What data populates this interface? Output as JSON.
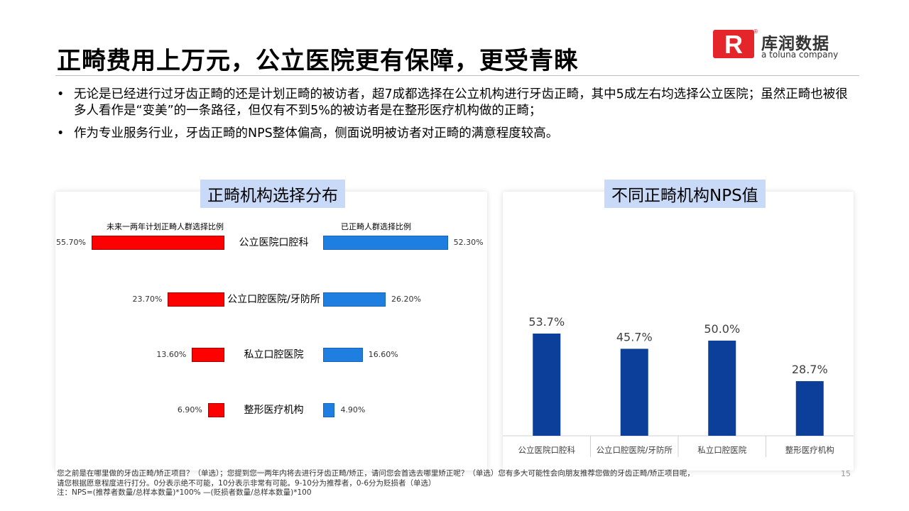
{
  "header": {
    "title": "正畸费用上万元，公立医院更有保障，更受青睐",
    "logo": {
      "brand_cn": "库润数据",
      "tagline": "a toluna company",
      "mark_text": "R",
      "registered": "®"
    }
  },
  "bullets": [
    "无论是已经进行过牙齿正畸的还是计划正畸的被访者，超7成都选择在公立机构进行牙齿正畸，其中5成左右均选择公立医院；虽然正畸也被很多人看作是“变美”的一条路径，但仅有不到5%的被访者是在整形医疗机构做的正畸；",
    "作为专业服务行业，牙齿正畸的NPS整体偏高，侧面说明被访者对正畸的满意程度较高。"
  ],
  "bullet_symbol": "•",
  "chart_data": [
    {
      "type": "bar",
      "orientation": "horizontal-butterfly",
      "title": "正畸机构选择分布",
      "categories": [
        "公立医院口腔科",
        "公立口腔医院/牙防所",
        "私立口腔医院",
        "整形医疗机构"
      ],
      "series": [
        {
          "name": "未来一两年计划正畸人群选择比例",
          "values": [
            55.7,
            23.7,
            13.6,
            6.9
          ],
          "labels": [
            "55.70%",
            "23.70%",
            "13.60%",
            "6.90%"
          ],
          "color": "#ff0000"
        },
        {
          "name": "已正畸人群选择比例",
          "values": [
            52.3,
            26.2,
            16.6,
            4.9
          ],
          "labels": [
            "52.30%",
            "26.20%",
            "16.60%",
            "4.90%"
          ],
          "color": "#1f7fe0"
        }
      ],
      "xlim": [
        0,
        60
      ],
      "unit": "%"
    },
    {
      "type": "bar",
      "title": "不同正畸机构NPS值",
      "categories": [
        "公立医院口腔科",
        "公立口腔医院/牙防所",
        "私立口腔医院",
        "整形医疗机构"
      ],
      "values": [
        53.7,
        45.7,
        50.0,
        28.7
      ],
      "labels": [
        "53.7%",
        "45.7%",
        "50.0%",
        "28.7%"
      ],
      "ylim": [
        0,
        60
      ],
      "color": "#0b3f99",
      "xlabel": "",
      "ylabel": ""
    }
  ],
  "footnote": {
    "line1": "您之前是在哪里做的牙齿正畸/矫正项目？（单选）；您提到您一两年内将去进行牙齿正畸/矫正，请问您会首选去哪里矫正呢？（单选）您有多大可能性会向朋友推荐您做的牙齿正畸/矫正项目呢，",
    "line2": "请您根据愿意程度进行打分。0分表示绝不可能，10分表示非常有可能。9-10分为推荐者，0-6分为贬损者（单选）",
    "line3": "注：NPS=(推荐者数量/总样本数量)*100% —(贬损者数量/总样本数量)*100"
  },
  "page_number": "15"
}
